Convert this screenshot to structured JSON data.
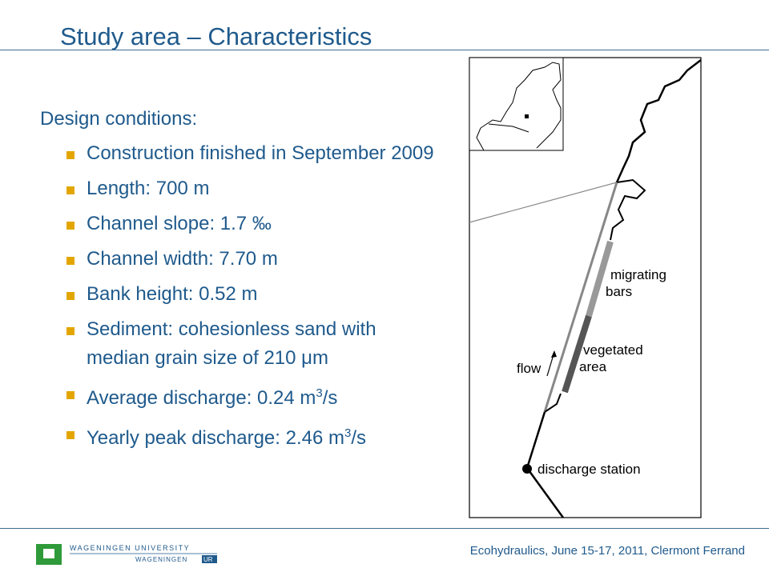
{
  "header": {
    "title": "Study area – Characteristics"
  },
  "lead": "Design conditions:",
  "bullets": [
    {
      "text": "Construction finished in September 2009"
    },
    {
      "text": "Length: 700 m"
    },
    {
      "text": "Channel slope: 1.7 ‰"
    },
    {
      "text": "Channel width: 7.70 m"
    },
    {
      "text": "Bank height: 0.52 m"
    },
    {
      "text": "Sediment: cohesionless sand with median grain size of 210 μm"
    },
    {
      "text": "Average discharge: 0.24 m",
      "sup": "3",
      "after": "/s"
    },
    {
      "text": "Yearly peak discharge: 2.46 m",
      "sup": "3",
      "after": "/s"
    }
  ],
  "map": {
    "labels": [
      "migrating",
      "bars",
      "vegetated",
      "area",
      "flow",
      "discharge station"
    ]
  },
  "footer": {
    "text": "Ecohydraulics, June 15-17, 2011, Clermont Ferrand",
    "logo_top": "WAGENINGEN UNIVERSITY",
    "logo_bottom": "WAGENINGEN",
    "logo_badge": "UR"
  }
}
